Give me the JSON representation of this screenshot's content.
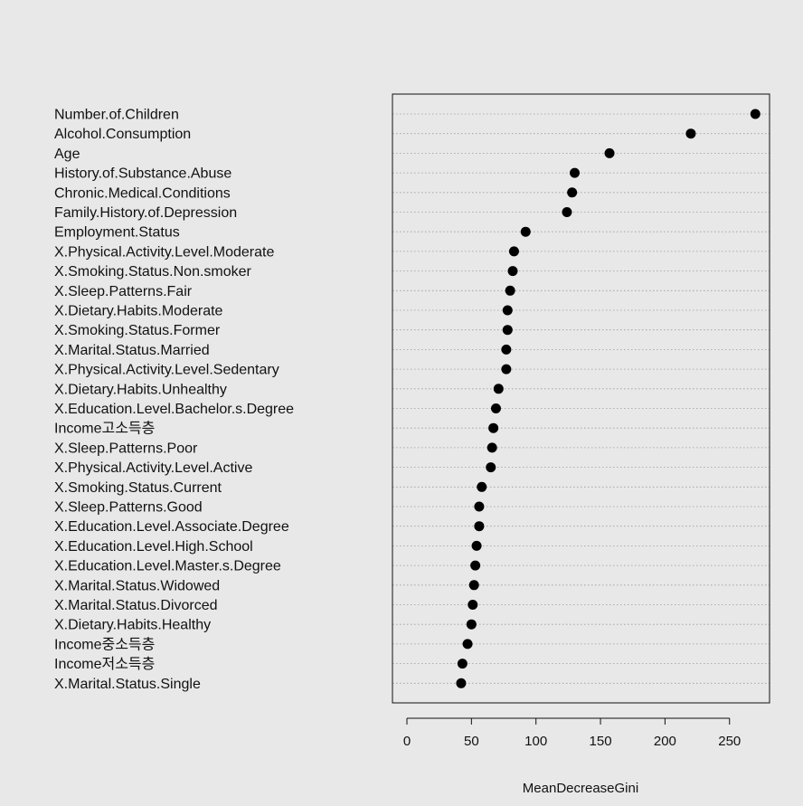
{
  "chart_data": {
    "type": "scatter",
    "subtype": "dotchart",
    "title": "",
    "xlabel": "MeanDecreaseGini",
    "ylabel": "",
    "xlim": [
      -10,
      280
    ],
    "xticks": [
      0,
      50,
      100,
      150,
      200,
      250
    ],
    "grid": "horizontal dotted",
    "legend": "none",
    "categories": [
      "Number.of.Children",
      "Alcohol.Consumption",
      "Age",
      "History.of.Substance.Abuse",
      "Chronic.Medical.Conditions",
      "Family.History.of.Depression",
      "Employment.Status",
      "X.Physical.Activity.Level.Moderate",
      "X.Smoking.Status.Non.smoker",
      "X.Sleep.Patterns.Fair",
      "X.Dietary.Habits.Moderate",
      "X.Smoking.Status.Former",
      "X.Marital.Status.Married",
      "X.Physical.Activity.Level.Sedentary",
      "X.Dietary.Habits.Unhealthy",
      "X.Education.Level.Bachelor.s.Degree",
      "Income고소득층",
      "X.Sleep.Patterns.Poor",
      "X.Physical.Activity.Level.Active",
      "X.Smoking.Status.Current",
      "X.Sleep.Patterns.Good",
      "X.Education.Level.Associate.Degree",
      "X.Education.Level.High.School",
      "X.Education.Level.Master.s.Degree",
      "X.Marital.Status.Widowed",
      "X.Marital.Status.Divorced",
      "X.Dietary.Habits.Healthy",
      "Income중소득층",
      "Income저소득층",
      "X.Marital.Status.Single"
    ],
    "values": [
      270,
      220,
      157,
      130,
      128,
      124,
      92,
      83,
      82,
      80,
      78,
      78,
      77,
      77,
      71,
      69,
      67,
      66,
      65,
      58,
      56,
      56,
      54,
      53,
      52,
      51,
      50,
      47,
      43,
      42
    ]
  }
}
